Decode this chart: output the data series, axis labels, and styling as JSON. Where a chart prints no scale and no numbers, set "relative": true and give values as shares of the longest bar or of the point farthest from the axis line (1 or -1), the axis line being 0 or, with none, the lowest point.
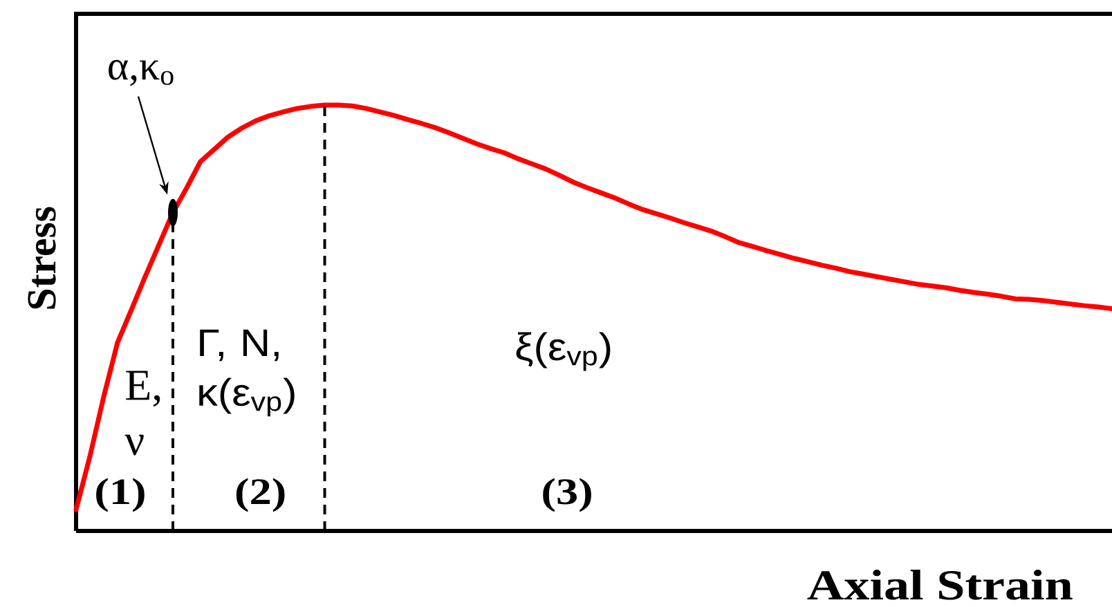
{
  "chart_data": {
    "type": "line",
    "xlabel": "Axial Strain",
    "ylabel": "Stress",
    "relative": true,
    "categories": [
      null,
      null,
      null,
      null,
      null,
      null,
      null,
      null,
      null,
      null,
      null,
      null,
      null,
      null,
      null,
      null,
      null,
      null,
      null,
      null,
      null,
      null,
      null,
      null,
      null,
      null,
      null,
      null,
      null,
      null,
      null,
      null,
      null,
      null,
      null,
      null,
      null,
      null,
      null,
      null,
      null,
      null,
      null,
      null,
      null,
      null,
      null,
      null,
      null,
      null,
      null,
      null,
      null,
      null,
      null,
      null,
      null,
      null,
      null,
      null,
      null,
      null,
      null,
      null,
      null,
      null,
      null,
      null,
      null,
      null,
      null,
      null,
      null,
      null,
      null,
      null
    ],
    "series": [
      {
        "color": "#ff0000",
        "values": [
          0.05,
          0.175,
          0.315,
          0.442,
          0.519,
          0.597,
          0.672,
          0.747,
          0.805,
          0.867,
          0.896,
          0.925,
          0.946,
          0.963,
          0.975,
          0.984,
          0.992,
          0.997,
          1.0,
          1.0,
          0.998,
          0.992,
          0.984,
          0.976,
          0.966,
          0.957,
          0.947,
          0.935,
          0.922,
          0.909,
          0.898,
          0.888,
          0.874,
          0.862,
          0.85,
          0.835,
          0.819,
          0.806,
          0.794,
          0.782,
          0.768,
          0.755,
          0.745,
          0.735,
          0.724,
          0.714,
          0.704,
          0.691,
          0.677,
          0.668,
          0.658,
          0.649,
          0.64,
          0.632,
          0.624,
          0.617,
          0.609,
          0.603,
          0.597,
          0.591,
          0.585,
          0.579,
          0.575,
          0.571,
          0.565,
          0.56,
          0.556,
          0.551,
          0.545,
          0.544,
          0.541,
          0.537,
          0.533,
          0.529,
          0.526,
          0.522
        ]
      }
    ],
    "annotations": [
      "α,κ$_{o}$",
      "E, ν",
      "(1)",
      "Γ, N, κ(ε$_{vp}$)",
      "(2)",
      "ξ(ε$_{vp}$)",
      "(3)"
    ]
  }
}
